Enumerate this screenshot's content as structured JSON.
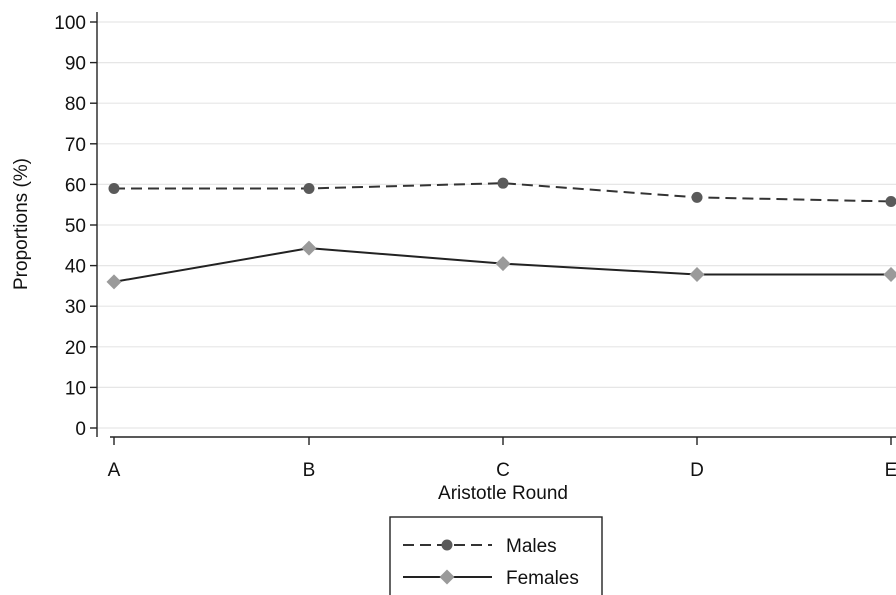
{
  "chart_data": {
    "type": "line",
    "title": "",
    "xlabel": "Aristotle Round",
    "ylabel": "Proportions (%)",
    "categories": [
      "A",
      "B",
      "C",
      "D",
      "E"
    ],
    "ylim": [
      0,
      100
    ],
    "yticks": [
      0,
      10,
      20,
      30,
      40,
      50,
      60,
      70,
      80,
      90,
      100
    ],
    "grid": true,
    "legend_position": "bottom",
    "series": [
      {
        "name": "Males",
        "values": [
          59,
          59,
          60.3,
          56.8,
          55.8
        ],
        "color": "#5a5a5a",
        "line": "dashed",
        "marker": "circle"
      },
      {
        "name": "Females",
        "values": [
          36,
          44.3,
          40.5,
          37.8,
          37.8
        ],
        "color": "#9a9a9a",
        "line": "solid",
        "marker": "diamond"
      }
    ]
  }
}
